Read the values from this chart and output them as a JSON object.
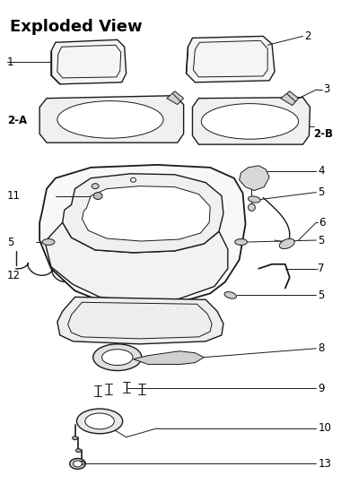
{
  "title": "Exploded View",
  "title_fontsize": 13,
  "title_fontweight": "bold",
  "background_color": "#ffffff",
  "line_color": "#1a1a1a",
  "fig_width": 3.8,
  "fig_height": 5.4,
  "dpi": 100
}
